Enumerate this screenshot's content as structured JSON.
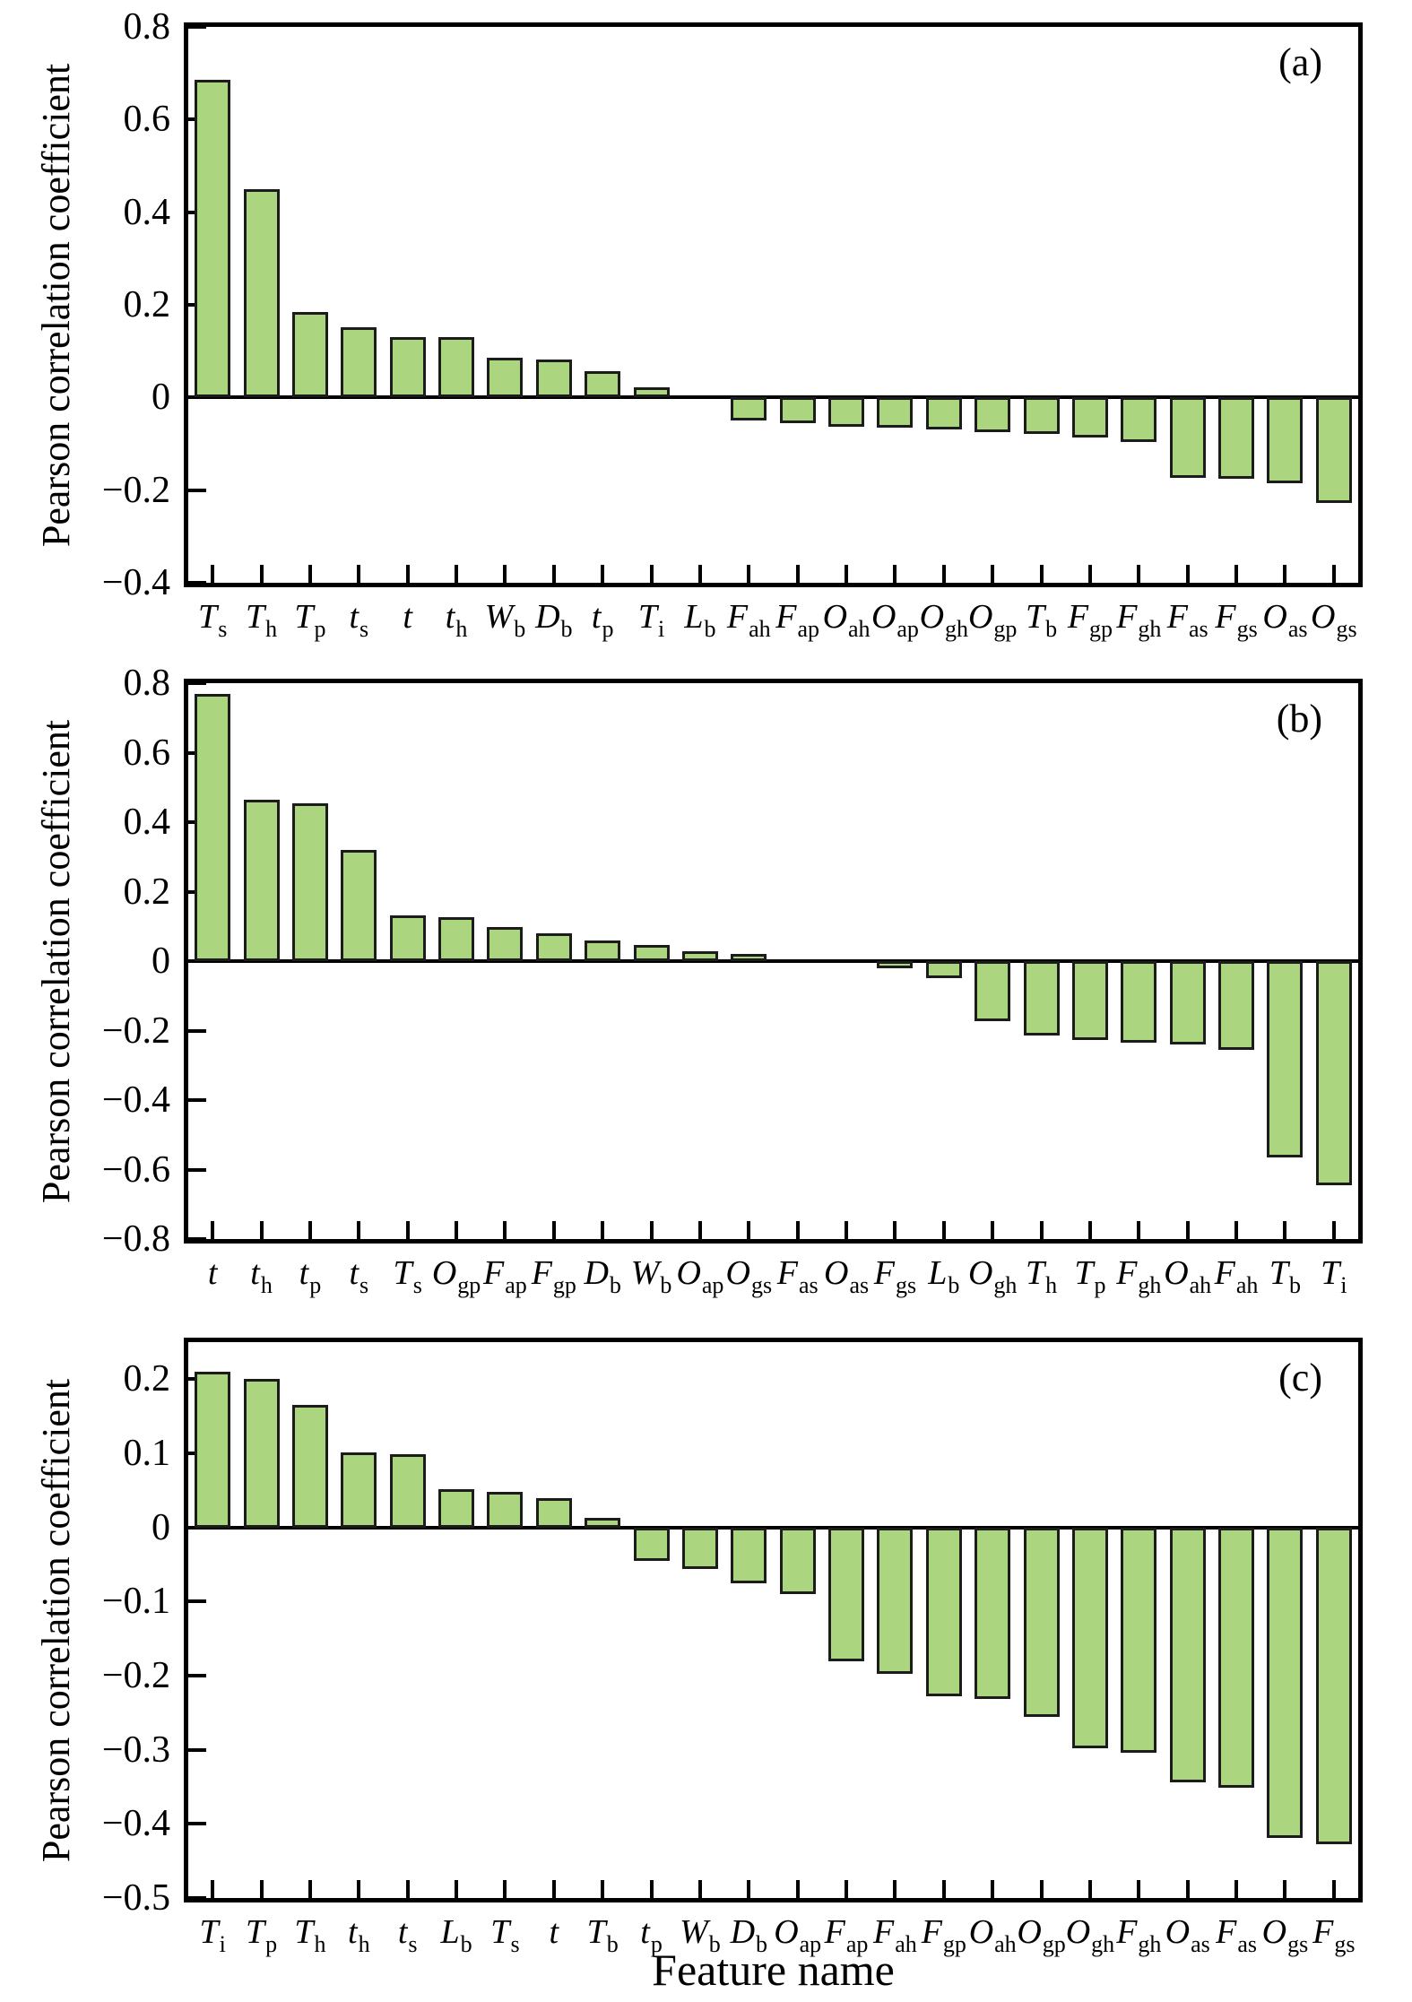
{
  "figure": {
    "background": "#ffffff",
    "bar_fill": "#abd57f",
    "bar_border": "#1c1c1c",
    "axis_color": "#000000"
  },
  "axis_titles": {
    "x": "Feature name",
    "y": "Pearson correlation coefficient"
  },
  "chart_data": [
    {
      "type": "bar",
      "panel_label": "(a)",
      "ylabel": "Pearson correlation coefficient",
      "xlabel": "",
      "ylim": [
        -0.4,
        0.8
      ],
      "ytick_values": [
        0.8,
        0.6,
        0.4,
        0.2,
        0,
        -0.2,
        -0.4
      ],
      "ytick_labels": [
        "0.8",
        "0.6",
        "0.4",
        "0.2",
        "0",
        "−0.2",
        "−0.4"
      ],
      "grid": false,
      "legend": null,
      "categories": [
        [
          "T",
          "s"
        ],
        [
          "T",
          "h"
        ],
        [
          "T",
          "p"
        ],
        [
          "t",
          "s"
        ],
        [
          "t",
          ""
        ],
        [
          "t",
          "h"
        ],
        [
          "W",
          "b"
        ],
        [
          "D",
          "b"
        ],
        [
          "t",
          "p"
        ],
        [
          "T",
          "i"
        ],
        [
          "L",
          "b"
        ],
        [
          "F",
          "ah"
        ],
        [
          "F",
          "ap"
        ],
        [
          "O",
          "ah"
        ],
        [
          "O",
          "ap"
        ],
        [
          "O",
          "gh"
        ],
        [
          "O",
          "gp"
        ],
        [
          "T",
          "b"
        ],
        [
          "F",
          "gp"
        ],
        [
          "F",
          "gh"
        ],
        [
          "F",
          "as"
        ],
        [
          "F",
          "gs"
        ],
        [
          "O",
          "as"
        ],
        [
          "O",
          "gs"
        ]
      ],
      "values": [
        0.685,
        0.45,
        0.185,
        0.152,
        0.13,
        0.13,
        0.086,
        0.082,
        0.057,
        0.022,
        0.004,
        -0.05,
        -0.055,
        -0.063,
        -0.066,
        -0.07,
        -0.074,
        -0.078,
        -0.087,
        -0.097,
        -0.173,
        -0.175,
        -0.186,
        -0.227
      ]
    },
    {
      "type": "bar",
      "panel_label": "(b)",
      "ylabel": "Pearson correlation coefficient",
      "xlabel": "",
      "ylim": [
        -0.8,
        0.8
      ],
      "ytick_values": [
        0.8,
        0.6,
        0.4,
        0.2,
        0,
        -0.2,
        -0.4,
        -0.6,
        -0.8
      ],
      "ytick_labels": [
        "0.8",
        "0.6",
        "0.4",
        "0.2",
        "0",
        "−0.2",
        "−0.4",
        "−0.6",
        "−0.8"
      ],
      "grid": false,
      "legend": null,
      "categories": [
        [
          "t",
          ""
        ],
        [
          "t",
          "h"
        ],
        [
          "t",
          "p"
        ],
        [
          "t",
          "s"
        ],
        [
          "T",
          "s"
        ],
        [
          "O",
          "gp"
        ],
        [
          "F",
          "ap"
        ],
        [
          "F",
          "gp"
        ],
        [
          "D",
          "b"
        ],
        [
          "W",
          "b"
        ],
        [
          "O",
          "ap"
        ],
        [
          "O",
          "gs"
        ],
        [
          "F",
          "as"
        ],
        [
          "O",
          "as"
        ],
        [
          "F",
          "gs"
        ],
        [
          "L",
          "b"
        ],
        [
          "O",
          "gh"
        ],
        [
          "T",
          "h"
        ],
        [
          "T",
          "p"
        ],
        [
          "F",
          "gh"
        ],
        [
          "O",
          "ah"
        ],
        [
          "F",
          "ah"
        ],
        [
          "T",
          "b"
        ],
        [
          "T",
          "i"
        ]
      ],
      "values": [
        0.77,
        0.465,
        0.455,
        0.32,
        0.131,
        0.127,
        0.099,
        0.079,
        0.059,
        0.046,
        0.028,
        0.02,
        -0.004,
        -0.006,
        -0.02,
        -0.048,
        -0.174,
        -0.215,
        -0.228,
        -0.236,
        -0.24,
        -0.255,
        -0.565,
        -0.645
      ]
    },
    {
      "type": "bar",
      "panel_label": "(c)",
      "ylabel": "Pearson correlation coefficient",
      "xlabel": "Feature name",
      "ylim": [
        -0.5,
        0.25
      ],
      "ytick_values": [
        0.2,
        0.1,
        0,
        -0.1,
        -0.2,
        -0.3,
        -0.4,
        -0.5
      ],
      "ytick_labels": [
        "0.2",
        "0.1",
        "0",
        "−0.1",
        "−0.2",
        "−0.3",
        "−0.4",
        "−0.5"
      ],
      "grid": false,
      "legend": null,
      "categories": [
        [
          "T",
          "i"
        ],
        [
          "T",
          "p"
        ],
        [
          "T",
          "h"
        ],
        [
          "t",
          "h"
        ],
        [
          "t",
          "s"
        ],
        [
          "L",
          "b"
        ],
        [
          "T",
          "s"
        ],
        [
          "t",
          ""
        ],
        [
          "T",
          "b"
        ],
        [
          "t",
          "p"
        ],
        [
          "W",
          "b"
        ],
        [
          "D",
          "b"
        ],
        [
          "O",
          "ap"
        ],
        [
          "F",
          "ap"
        ],
        [
          "F",
          "ah"
        ],
        [
          "F",
          "gp"
        ],
        [
          "O",
          "ah"
        ],
        [
          "O",
          "gp"
        ],
        [
          "O",
          "gh"
        ],
        [
          "F",
          "gh"
        ],
        [
          "O",
          "as"
        ],
        [
          "F",
          "as"
        ],
        [
          "O",
          "gs"
        ],
        [
          "F",
          "gs"
        ]
      ],
      "values": [
        0.21,
        0.2,
        0.165,
        0.101,
        0.099,
        0.052,
        0.048,
        0.04,
        0.013,
        -0.045,
        -0.056,
        -0.075,
        -0.09,
        -0.181,
        -0.197,
        -0.228,
        -0.232,
        -0.256,
        -0.298,
        -0.304,
        -0.344,
        -0.351,
        -0.419,
        -0.427
      ]
    }
  ]
}
